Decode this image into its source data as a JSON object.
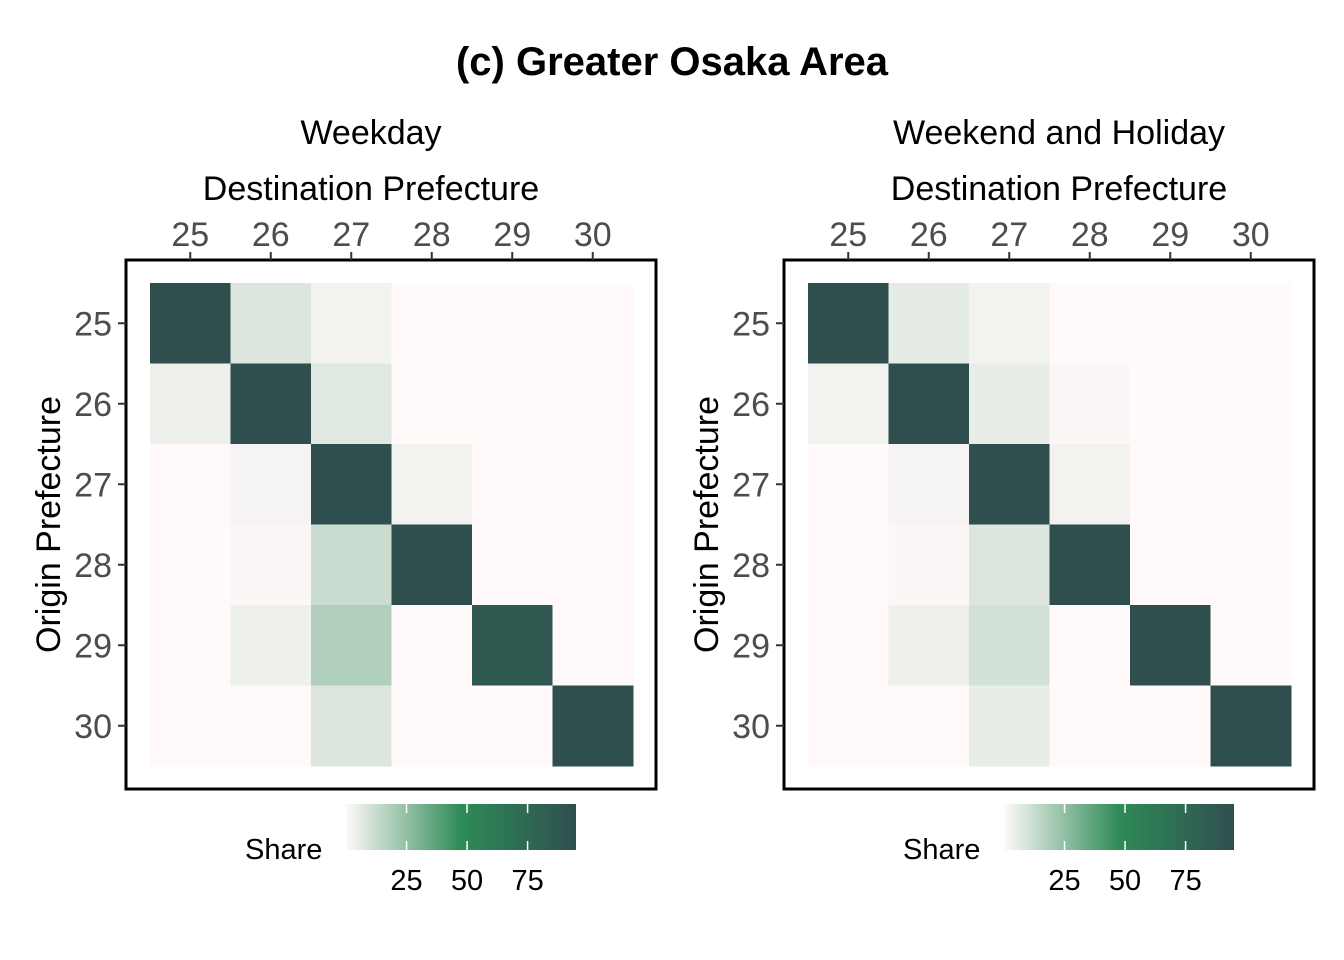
{
  "title": "(c) Greater Osaka Area",
  "colors": {
    "scale_low": "#fff9f9",
    "scale_mid": "#2e8b57",
    "scale_high": "#2f4f4f"
  },
  "chart_data": [
    {
      "type": "heatmap",
      "facet_title": "Weekday",
      "xlabel": "Destination Prefecture",
      "ylabel": "Origin Prefecture",
      "x_categories": [
        "25",
        "26",
        "27",
        "28",
        "29",
        "30"
      ],
      "y_categories": [
        "25",
        "26",
        "27",
        "28",
        "29",
        "30"
      ],
      "x_axis_position": "top",
      "values": [
        [
          95,
          8,
          3,
          0,
          0,
          0
        ],
        [
          4,
          95,
          7,
          0,
          0,
          0
        ],
        [
          0,
          2,
          95,
          3,
          0,
          0
        ],
        [
          0,
          1,
          12,
          95,
          0,
          0
        ],
        [
          0,
          4,
          18,
          0,
          88,
          0
        ],
        [
          0,
          0,
          8,
          0,
          0,
          95
        ]
      ],
      "legend": {
        "title": "Share",
        "ticks": [
          25,
          50,
          75
        ],
        "range": [
          0,
          95
        ],
        "position": "bottom"
      }
    },
    {
      "type": "heatmap",
      "facet_title": "Weekend and Holiday",
      "xlabel": "Destination Prefecture",
      "ylabel": "Origin Prefecture",
      "x_categories": [
        "25",
        "26",
        "27",
        "28",
        "29",
        "30"
      ],
      "y_categories": [
        "25",
        "26",
        "27",
        "28",
        "29",
        "30"
      ],
      "x_axis_position": "top",
      "values": [
        [
          95,
          6,
          3,
          0,
          0,
          0
        ],
        [
          3,
          95,
          5,
          1,
          0,
          0
        ],
        [
          0,
          2,
          95,
          3,
          0,
          0
        ],
        [
          0,
          1,
          8,
          95,
          0,
          0
        ],
        [
          0,
          4,
          10,
          0,
          95,
          0
        ],
        [
          0,
          0,
          5,
          0,
          0,
          95
        ]
      ],
      "legend": {
        "title": "Share",
        "ticks": [
          25,
          50,
          75
        ],
        "range": [
          0,
          95
        ],
        "position": "bottom"
      }
    }
  ]
}
